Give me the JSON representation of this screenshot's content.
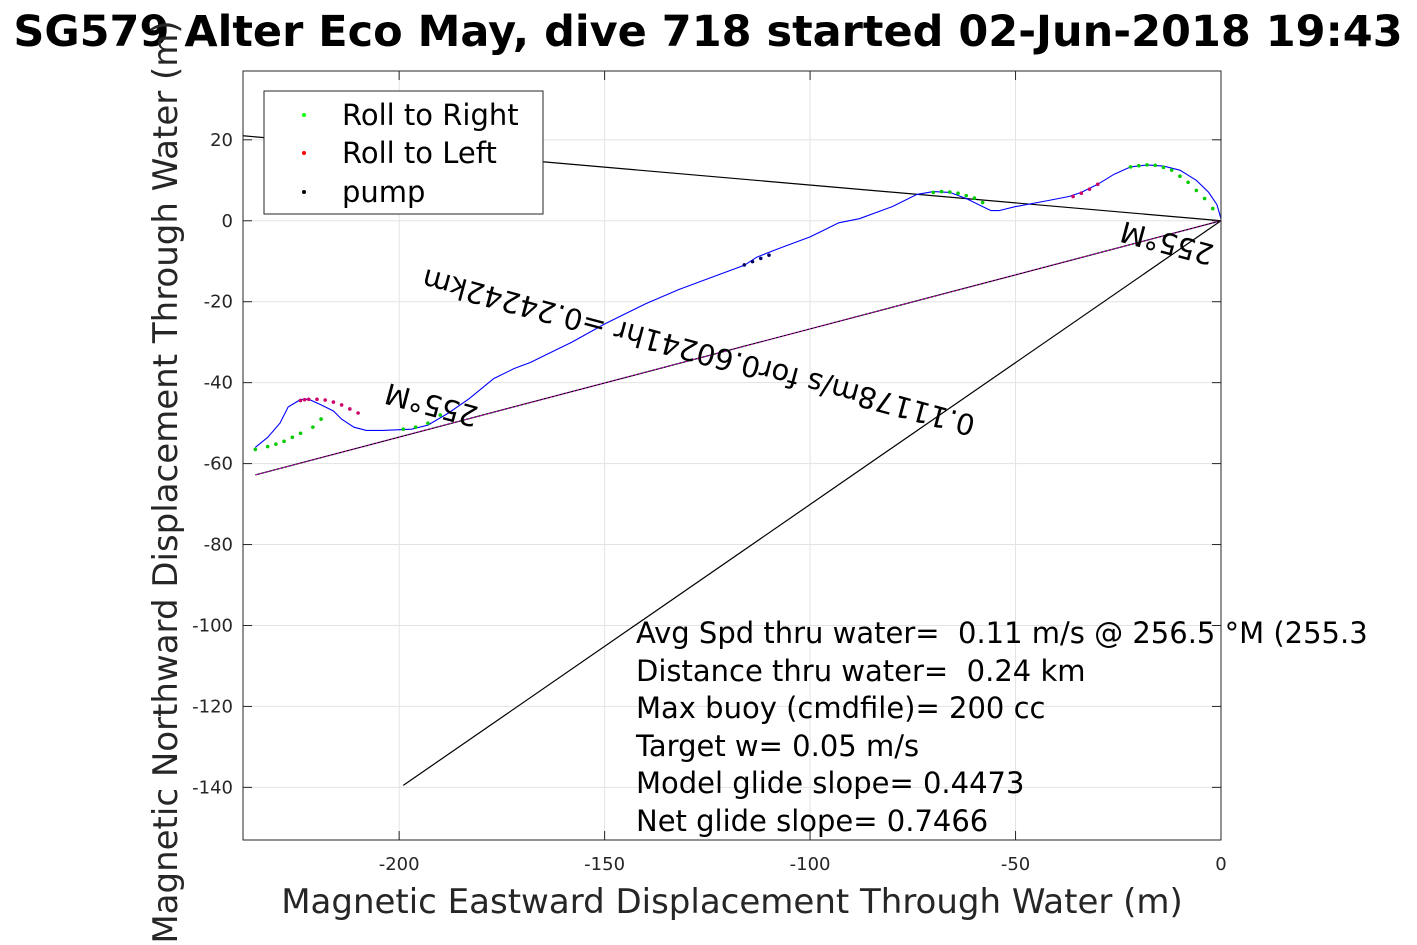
{
  "chart_data": {
    "type": "line",
    "title": "SG579 Alter Eco May, dive 718 started 02-Jun-2018 19:43",
    "xlabel": "Magnetic Eastward Displacement Through Water (m)",
    "ylabel": "Magnetic Northward Displacement Through Water (m)",
    "xlim": [
      -238,
      0
    ],
    "ylim": [
      -153,
      37
    ],
    "xticks": [
      -200,
      -150,
      -100,
      -50,
      0
    ],
    "yticks": [
      20,
      0,
      -20,
      -40,
      -60,
      -80,
      -100,
      -120,
      -140
    ],
    "grid": true,
    "legend_position": "top-left",
    "legend": [
      {
        "label": "Roll to Right",
        "color": "#00ff00"
      },
      {
        "label": "Roll to Left",
        "color": "#ff0000"
      },
      {
        "label": "pump",
        "color": "#000000"
      }
    ],
    "track": {
      "color": "#0000ff",
      "x": [
        0,
        -1,
        -3,
        -6,
        -10,
        -14,
        -18,
        -22,
        -26,
        -30,
        -34,
        -37,
        -42,
        -50,
        -54,
        -56,
        -58,
        -62,
        -66,
        -70,
        -74,
        -80,
        -88,
        -93,
        -97,
        -100,
        -108,
        -113,
        -116,
        -124,
        -132,
        -140,
        -150,
        -158,
        -165,
        -168,
        -172,
        -177,
        -183,
        -188,
        -193,
        -197,
        -204,
        -208,
        -211,
        -214,
        -216,
        -219,
        -222,
        -224,
        -227,
        -229,
        -232,
        -235
      ],
      "y": [
        0.5,
        4,
        7,
        10,
        12.5,
        13.5,
        13.8,
        13.3,
        11.5,
        9,
        7,
        6,
        5,
        3.5,
        2.5,
        2.5,
        3.5,
        5.5,
        7,
        7.2,
        6.5,
        3.5,
        0.5,
        -0.5,
        -2.5,
        -4,
        -7,
        -9,
        -11,
        -14,
        -17,
        -20.5,
        -25.5,
        -30,
        -33.5,
        -35,
        -36.5,
        -39,
        -44,
        -47.5,
        -50.5,
        -51.5,
        -51.8,
        -51.8,
        -51,
        -49,
        -47,
        -45.5,
        -44.1,
        -44.2,
        -46,
        -50,
        -53.5,
        -56
      ]
    },
    "roll_right": {
      "x": [
        -2,
        -4,
        -6,
        -8,
        -10,
        -12,
        -14,
        -16,
        -18,
        -20,
        -22,
        -58,
        -60,
        -62,
        -64,
        -66,
        -68,
        -70,
        -190,
        -193,
        -196,
        -199,
        -219,
        -221,
        -224,
        -226,
        -228,
        -230,
        -232,
        -235
      ],
      "y": [
        3,
        5.5,
        7.5,
        9.5,
        11,
        12.5,
        13.2,
        13.7,
        13.8,
        13.6,
        13.3,
        4.5,
        5.6,
        6.2,
        6.8,
        7.1,
        7.2,
        7.0,
        -48,
        -50,
        -51,
        -51.5,
        -49,
        -51,
        -52.5,
        -53.5,
        -54.5,
        -55.2,
        -55.8,
        -56.5
      ]
    },
    "roll_left": {
      "x": [
        -30,
        -32,
        -34,
        -36,
        -210,
        -212,
        -214,
        -216,
        -218,
        -220,
        -222,
        -223,
        -224
      ],
      "y": [
        9,
        7.8,
        6.8,
        6,
        -47.5,
        -46.5,
        -45.5,
        -44.8,
        -44.3,
        -44.1,
        -44.1,
        -44.2,
        -44.4
      ]
    },
    "pump": {
      "x": [
        -110,
        -112,
        -114,
        -116
      ],
      "y": [
        -8.5,
        -9.3,
        -10.1,
        -10.9
      ]
    },
    "lines": [
      {
        "name": "current",
        "color": "#000000",
        "x": [
          0,
          -238
        ],
        "y": [
          0,
          21
        ]
      },
      {
        "name": "glide",
        "color": "#000000",
        "x": [
          0,
          -199
        ],
        "y": [
          0,
          -139.5
        ]
      },
      {
        "name": "net",
        "color": "#000000",
        "x": [
          0,
          -235
        ],
        "y": [
          0,
          -62.8
        ]
      },
      {
        "name": "net-magenta",
        "color": "#cc00cc",
        "x": [
          0,
          -235
        ],
        "y": [
          0,
          -62.8
        ]
      }
    ],
    "annotations": [
      {
        "text": "0.11178m/s for0.60241hr =0.24242km",
        "x": -127,
        "y": -32,
        "angle_deg": 195
      },
      {
        "text": "255°M",
        "x": -13,
        "y": -5,
        "angle_deg": 195
      },
      {
        "text": "255°M",
        "x": -192,
        "y": -45,
        "angle_deg": 195
      }
    ],
    "stats": [
      "Avg Spd thru water=  0.11 m/s @ 256.5 °M (255.3",
      "Distance thru water=  0.24 km",
      "Max buoy (cmdfile)= 200 cc",
      "Target w= 0.05 m/s",
      "Model glide slope= 0.4473",
      "Net glide slope= 0.7466"
    ]
  }
}
